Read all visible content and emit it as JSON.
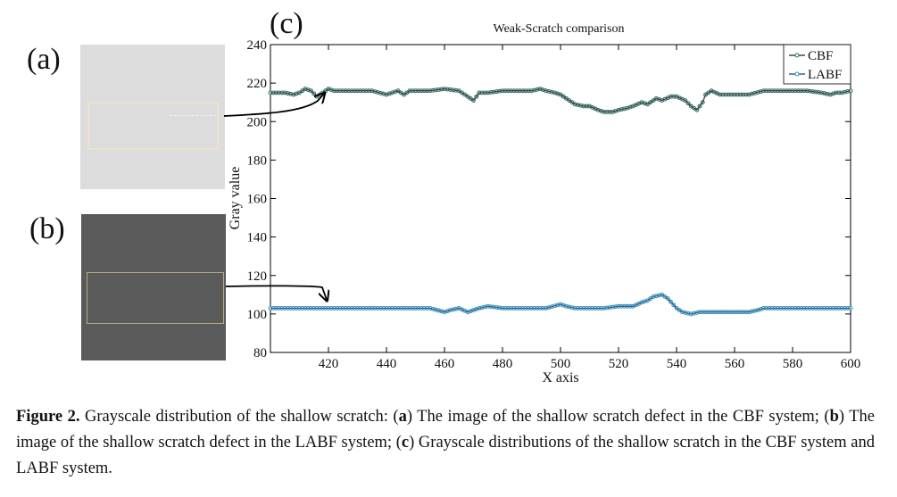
{
  "panels": {
    "a": "(a)",
    "b": "(b)",
    "c": "(c)"
  },
  "chart_data": {
    "type": "line",
    "title": "Weak-Scratch comparison",
    "xlabel": "X axis",
    "ylabel": "Gray value",
    "xlim": [
      400,
      600
    ],
    "ylim": [
      80,
      240
    ],
    "xticks": [
      420,
      440,
      460,
      480,
      500,
      520,
      540,
      560,
      580,
      600
    ],
    "yticks": [
      80,
      100,
      120,
      140,
      160,
      180,
      200,
      220,
      240
    ],
    "legend": [
      "CBF",
      "LABF"
    ],
    "legend_position": "top-right",
    "series": [
      {
        "name": "CBF",
        "color": "#3d4a44",
        "marker_color": "#2f6e6a",
        "x": [
          400,
          405,
          408,
          410,
          412,
          414,
          416,
          418,
          420,
          422,
          425,
          430,
          435,
          440,
          444,
          446,
          448,
          450,
          452,
          455,
          460,
          465,
          468,
          470,
          472,
          475,
          480,
          485,
          490,
          493,
          495,
          498,
          500,
          503,
          505,
          508,
          510,
          513,
          515,
          518,
          520,
          523,
          525,
          528,
          530,
          533,
          535,
          538,
          540,
          543,
          545,
          547,
          549,
          550,
          552,
          555,
          560,
          565,
          570,
          575,
          580,
          585,
          590,
          593,
          595,
          597,
          600
        ],
        "y": [
          215,
          215,
          214,
          215,
          217,
          216,
          213,
          215,
          217,
          216,
          216,
          216,
          216,
          214,
          216,
          214,
          216,
          216,
          216,
          216,
          217,
          216,
          213,
          211,
          215,
          215,
          216,
          216,
          216,
          217,
          216,
          215,
          214,
          211,
          209,
          208,
          208,
          206,
          205,
          205,
          206,
          207,
          208,
          210,
          209,
          212,
          211,
          213,
          213,
          211,
          208,
          206,
          210,
          214,
          216,
          214,
          214,
          214,
          216,
          216,
          216,
          216,
          215,
          214,
          215,
          215,
          216
        ]
      },
      {
        "name": "LABF",
        "color": "#2a6a98",
        "marker_color": "#3b8fb9",
        "x": [
          400,
          420,
          440,
          455,
          460,
          462,
          465,
          468,
          470,
          472,
          475,
          480,
          490,
          495,
          500,
          502,
          505,
          510,
          515,
          520,
          525,
          528,
          530,
          532,
          535,
          537,
          540,
          542,
          545,
          548,
          550,
          555,
          560,
          565,
          568,
          570,
          580,
          590,
          600
        ],
        "y": [
          103,
          103,
          103,
          103,
          101,
          102,
          103,
          101,
          102,
          103,
          104,
          103,
          103,
          103,
          105,
          104,
          103,
          103,
          103,
          104,
          104,
          106,
          107,
          109,
          110,
          108,
          103,
          101,
          100,
          101,
          101,
          101,
          101,
          101,
          102,
          103,
          103,
          103,
          103
        ]
      }
    ]
  },
  "caption": {
    "figure_label": "Figure 2.",
    "lead": " Grayscale distribution of the shallow scratch: (",
    "a": "a",
    "a_text": ") The image of the shallow scratch defect in the CBF system; (",
    "b": "b",
    "b_text": ") The image of the shallow scratch defect in the LABF system; (",
    "c": "c",
    "c_text": ") Grayscale distributions of the shallow scratch in the CBF system and LABF system."
  }
}
